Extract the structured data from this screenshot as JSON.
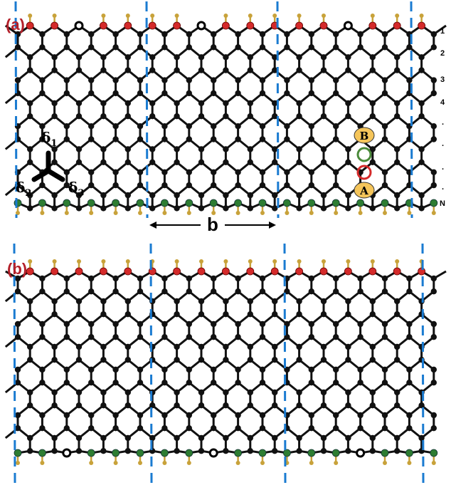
{
  "panels": [
    {
      "label": "(a)",
      "row_labels": [
        "1",
        "2",
        "3",
        "4",
        ".",
        ".",
        ".",
        ".",
        "N"
      ]
    },
    {
      "label": "(b)"
    }
  ],
  "hopping_labels": [
    {
      "symbol": "δ",
      "sub": "1"
    },
    {
      "symbol": "δ",
      "sub": "2"
    },
    {
      "symbol": "δ",
      "sub": "3"
    }
  ],
  "sites": {
    "A": "A",
    "B": "B"
  },
  "period_label": "b",
  "colors": {
    "carbon": "#111111",
    "top_edge_atom": "#d42a2a",
    "bottom_edge_atom": "#2e7d32",
    "hydrogen": "#c8a23a",
    "vacancy": "#ffffff",
    "cell_boundary": "#1a7bd1",
    "panel_label": "#b3202a",
    "site_fill": "#f5c55a",
    "ring_green": "#4a8a3a",
    "ring_red": "#d42a2a"
  }
}
